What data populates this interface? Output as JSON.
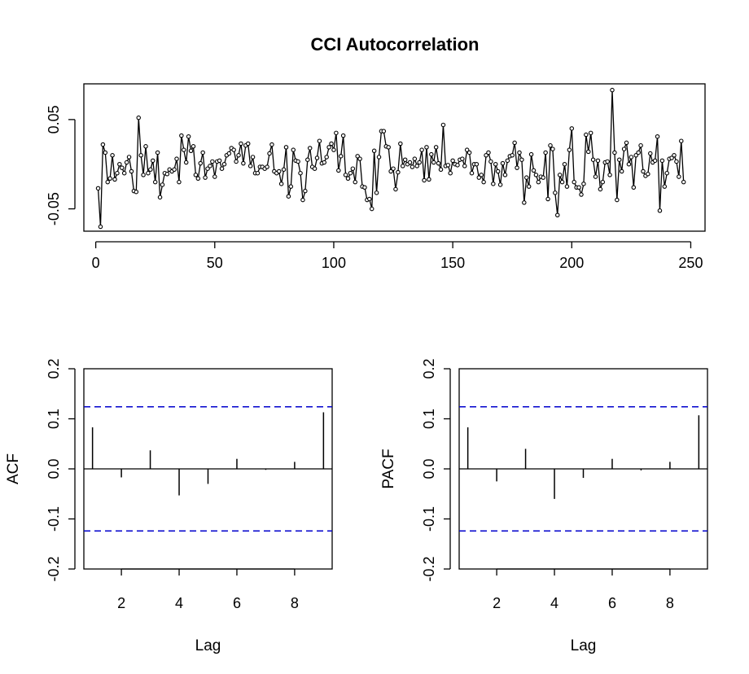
{
  "title": "CCI Autocorrelation",
  "colors": {
    "series": "#000000",
    "ci": "#0000cc",
    "background": "#ffffff"
  },
  "chart_data": [
    {
      "type": "line",
      "markers": "open-circle",
      "title": "CCI Autocorrelation",
      "xlabel": "",
      "ylabel": "",
      "xlim": [
        -5,
        256
      ],
      "ylim": [
        -0.075,
        0.09
      ],
      "xticks": [
        0,
        50,
        100,
        150,
        200,
        250
      ],
      "yticks": [
        -0.05,
        0.05
      ],
      "yticklabels": [
        "-0.05",
        "0.05"
      ],
      "x_start": 1,
      "values": [
        -0.027,
        -0.07,
        0.022,
        0.013,
        -0.02,
        -0.016,
        0.01,
        -0.017,
        -0.01,
        0.0,
        -0.004,
        -0.01,
        0.002,
        0.008,
        -0.008,
        -0.03,
        -0.031,
        0.052,
        0.01,
        -0.012,
        0.02,
        -0.01,
        -0.006,
        0.004,
        -0.02,
        0.013,
        -0.037,
        -0.023,
        -0.01,
        -0.011,
        -0.006,
        -0.008,
        -0.006,
        0.006,
        -0.02,
        0.032,
        0.016,
        0.002,
        0.031,
        0.015,
        0.02,
        -0.012,
        -0.016,
        0.001,
        0.013,
        -0.015,
        -0.005,
        -0.002,
        0.003,
        -0.014,
        0.003,
        0.004,
        -0.005,
        0.0,
        0.01,
        0.012,
        0.018,
        0.016,
        0.003,
        0.01,
        0.023,
        0.001,
        0.021,
        0.023,
        -0.002,
        0.008,
        -0.01,
        -0.01,
        -0.003,
        -0.003,
        -0.005,
        -0.003,
        0.012,
        0.022,
        -0.008,
        -0.01,
        -0.008,
        -0.022,
        -0.006,
        0.019,
        -0.036,
        -0.025,
        0.016,
        0.004,
        0.003,
        -0.01,
        -0.04,
        -0.03,
        0.005,
        0.018,
        -0.003,
        -0.005,
        0.007,
        0.026,
        0.001,
        0.002,
        0.008,
        0.019,
        0.023,
        0.016,
        0.035,
        -0.007,
        0.009,
        0.032,
        -0.012,
        -0.016,
        -0.01,
        -0.005,
        -0.02,
        0.009,
        0.006,
        -0.025,
        -0.026,
        -0.04,
        -0.039,
        -0.05,
        0.015,
        -0.032,
        0.008,
        0.037,
        0.037,
        0.02,
        0.019,
        -0.008,
        -0.005,
        -0.028,
        -0.009,
        0.023,
        -0.002,
        0.005,
        0.0,
        0.002,
        -0.003,
        0.006,
        -0.002,
        0.002,
        0.016,
        -0.018,
        0.019,
        -0.017,
        0.011,
        0.002,
        0.019,
        0.001,
        -0.006,
        0.044,
        -0.002,
        -0.001,
        -0.01,
        0.004,
        0.0,
        -0.001,
        0.005,
        0.006,
        -0.002,
        0.016,
        0.013,
        -0.01,
        0.0,
        0.0,
        -0.015,
        -0.012,
        -0.02,
        0.01,
        0.013,
        0.003,
        -0.022,
        0.0,
        -0.008,
        -0.023,
        0.001,
        -0.012,
        0.004,
        0.009,
        0.01,
        0.024,
        -0.004,
        0.013,
        0.005,
        -0.043,
        -0.015,
        -0.025,
        0.011,
        -0.007,
        -0.012,
        -0.02,
        -0.014,
        -0.015,
        0.013,
        -0.039,
        0.021,
        0.017,
        -0.032,
        -0.057,
        -0.012,
        -0.02,
        0.0,
        -0.025,
        0.016,
        0.04,
        -0.02,
        -0.026,
        -0.026,
        -0.034,
        -0.022,
        0.033,
        0.014,
        0.035,
        0.005,
        -0.014,
        0.004,
        -0.028,
        -0.02,
        0.002,
        0.003,
        -0.012,
        0.083,
        0.013,
        -0.04,
        0.005,
        -0.008,
        0.017,
        0.024,
        0.0,
        0.008,
        -0.026,
        0.01,
        0.013,
        0.021,
        -0.008,
        -0.013,
        -0.011,
        0.012,
        0.002,
        0.004,
        0.031,
        -0.052,
        0.004,
        -0.025,
        -0.01,
        0.006,
        0.007,
        0.01,
        0.003,
        -0.014,
        0.026,
        -0.02
      ]
    },
    {
      "type": "bar",
      "ylabel": "ACF",
      "xlabel": "Lag",
      "xlim": [
        0.7,
        9.3
      ],
      "ylim": [
        -0.2,
        0.2
      ],
      "xticks": [
        2,
        4,
        6,
        8
      ],
      "yticks": [
        -0.2,
        -0.1,
        0.0,
        0.1,
        0.2
      ],
      "yticklabels": [
        "-0.2",
        "-0.1",
        "0.0",
        "0.1",
        "0.2"
      ],
      "categories": [
        1,
        2,
        3,
        4,
        5,
        6,
        7,
        8,
        9
      ],
      "values": [
        0.083,
        -0.017,
        0.037,
        -0.053,
        -0.03,
        0.02,
        -0.002,
        0.014,
        0.113
      ],
      "confidence_band": 0.124
    },
    {
      "type": "bar",
      "ylabel": "PACF",
      "xlabel": "Lag",
      "xlim": [
        0.7,
        9.3
      ],
      "ylim": [
        -0.2,
        0.2
      ],
      "xticks": [
        2,
        4,
        6,
        8
      ],
      "yticks": [
        -0.2,
        -0.1,
        0.0,
        0.1,
        0.2
      ],
      "yticklabels": [
        "-0.2",
        "-0.1",
        "0.0",
        "0.1",
        "0.2"
      ],
      "categories": [
        1,
        2,
        3,
        4,
        5,
        6,
        7,
        8,
        9
      ],
      "values": [
        0.083,
        -0.025,
        0.04,
        -0.06,
        -0.018,
        0.02,
        -0.003,
        0.014,
        0.107
      ],
      "confidence_band": 0.124
    }
  ]
}
